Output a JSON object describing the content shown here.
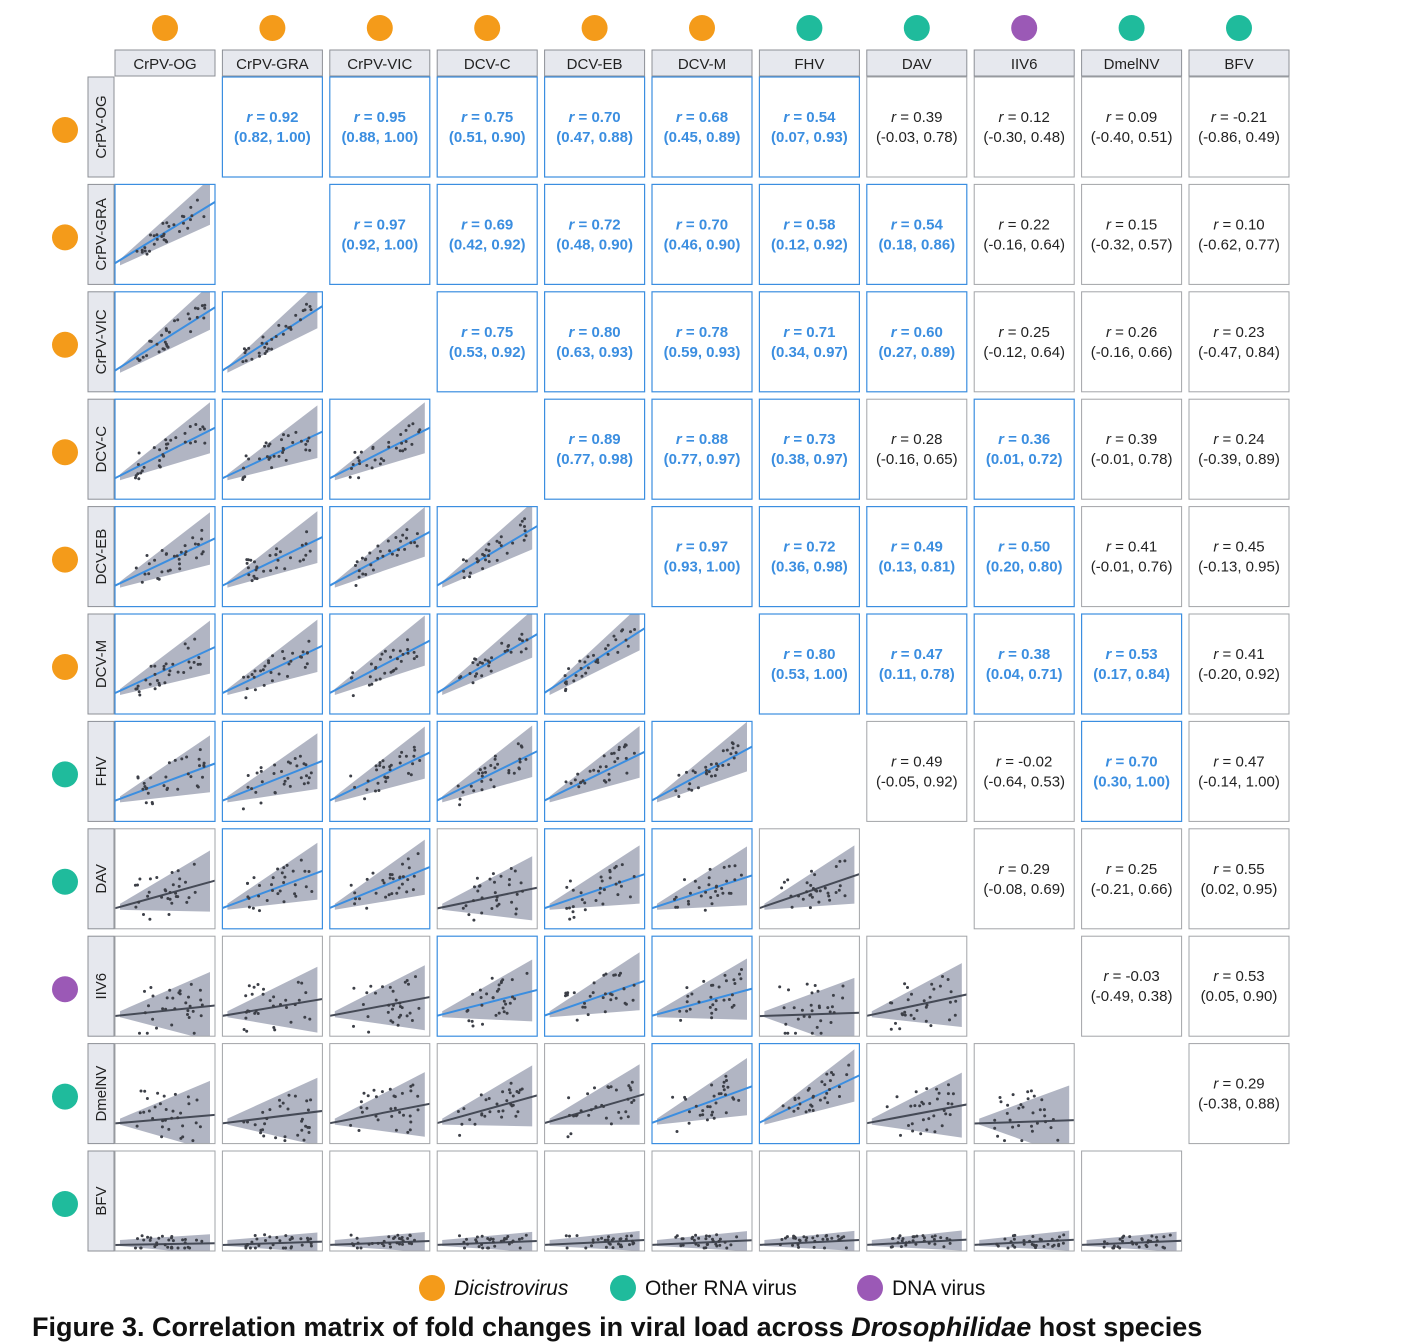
{
  "chart_data": {
    "type": "correlation-matrix",
    "viruses": [
      "CrPV-OG",
      "CrPV-GRA",
      "CrPV-VIC",
      "DCV-C",
      "DCV-EB",
      "DCV-M",
      "FHV",
      "DAV",
      "IIV6",
      "DmelNV",
      "BFV"
    ],
    "virus_groups": [
      "Dicistrovirus",
      "Dicistrovirus",
      "Dicistrovirus",
      "Dicistrovirus",
      "Dicistrovirus",
      "Dicistrovirus",
      "Other RNA virus",
      "Other RNA virus",
      "DNA virus",
      "Other RNA virus",
      "Other RNA virus"
    ],
    "group_colors": {
      "Dicistrovirus": "#f49b1a",
      "Other RNA virus": "#1fbb9c",
      "DNA virus": "#9b59b6"
    },
    "highlight_color": "#3b8ee0",
    "band_color": "#a9adbd",
    "neutral_line_color": "#454a56",
    "r_label": "r",
    "correlations": [
      {
        "row": 0,
        "col": 1,
        "r": "0.92",
        "ci": "(0.82, 1.00)",
        "significant": true
      },
      {
        "row": 0,
        "col": 2,
        "r": "0.95",
        "ci": "(0.88, 1.00)",
        "significant": true
      },
      {
        "row": 0,
        "col": 3,
        "r": "0.75",
        "ci": "(0.51, 0.90)",
        "significant": true
      },
      {
        "row": 0,
        "col": 4,
        "r": "0.70",
        "ci": "(0.47, 0.88)",
        "significant": true
      },
      {
        "row": 0,
        "col": 5,
        "r": "0.68",
        "ci": "(0.45, 0.89)",
        "significant": true
      },
      {
        "row": 0,
        "col": 6,
        "r": "0.54",
        "ci": "(0.07, 0.93)",
        "significant": true
      },
      {
        "row": 0,
        "col": 7,
        "r": "0.39",
        "ci": "(-0.03, 0.78)",
        "significant": false
      },
      {
        "row": 0,
        "col": 8,
        "r": "0.12",
        "ci": "(-0.30, 0.48)",
        "significant": false
      },
      {
        "row": 0,
        "col": 9,
        "r": "0.09",
        "ci": "(-0.40, 0.51)",
        "significant": false
      },
      {
        "row": 0,
        "col": 10,
        "r": "-0.21",
        "ci": "(-0.86, 0.49)",
        "significant": false
      },
      {
        "row": 1,
        "col": 2,
        "r": "0.97",
        "ci": "(0.92, 1.00)",
        "significant": true
      },
      {
        "row": 1,
        "col": 3,
        "r": "0.69",
        "ci": "(0.42, 0.92)",
        "significant": true
      },
      {
        "row": 1,
        "col": 4,
        "r": "0.72",
        "ci": "(0.48, 0.90)",
        "significant": true
      },
      {
        "row": 1,
        "col": 5,
        "r": "0.70",
        "ci": "(0.46, 0.90)",
        "significant": true
      },
      {
        "row": 1,
        "col": 6,
        "r": "0.58",
        "ci": "(0.12, 0.92)",
        "significant": true
      },
      {
        "row": 1,
        "col": 7,
        "r": "0.54",
        "ci": "(0.18, 0.86)",
        "significant": true
      },
      {
        "row": 1,
        "col": 8,
        "r": "0.22",
        "ci": "(-0.16, 0.64)",
        "significant": false
      },
      {
        "row": 1,
        "col": 9,
        "r": "0.15",
        "ci": "(-0.32, 0.57)",
        "significant": false
      },
      {
        "row": 1,
        "col": 10,
        "r": "0.10",
        "ci": "(-0.62, 0.77)",
        "significant": false
      },
      {
        "row": 2,
        "col": 3,
        "r": "0.75",
        "ci": "(0.53, 0.92)",
        "significant": true
      },
      {
        "row": 2,
        "col": 4,
        "r": "0.80",
        "ci": "(0.63, 0.93)",
        "significant": true
      },
      {
        "row": 2,
        "col": 5,
        "r": "0.78",
        "ci": "(0.59, 0.93)",
        "significant": true
      },
      {
        "row": 2,
        "col": 6,
        "r": "0.71",
        "ci": "(0.34, 0.97)",
        "significant": true
      },
      {
        "row": 2,
        "col": 7,
        "r": "0.60",
        "ci": "(0.27, 0.89)",
        "significant": true
      },
      {
        "row": 2,
        "col": 8,
        "r": "0.25",
        "ci": "(-0.12, 0.64)",
        "significant": false
      },
      {
        "row": 2,
        "col": 9,
        "r": "0.26",
        "ci": "(-0.16, 0.66)",
        "significant": false
      },
      {
        "row": 2,
        "col": 10,
        "r": "0.23",
        "ci": "(-0.47, 0.84)",
        "significant": false
      },
      {
        "row": 3,
        "col": 4,
        "r": "0.89",
        "ci": "(0.77, 0.98)",
        "significant": true
      },
      {
        "row": 3,
        "col": 5,
        "r": "0.88",
        "ci": "(0.77, 0.97)",
        "significant": true
      },
      {
        "row": 3,
        "col": 6,
        "r": "0.73",
        "ci": "(0.38, 0.97)",
        "significant": true
      },
      {
        "row": 3,
        "col": 7,
        "r": "0.28",
        "ci": "(-0.16, 0.65)",
        "significant": false
      },
      {
        "row": 3,
        "col": 8,
        "r": "0.36",
        "ci": "(0.01, 0.72)",
        "significant": true
      },
      {
        "row": 3,
        "col": 9,
        "r": "0.39",
        "ci": "(-0.01, 0.78)",
        "significant": false
      },
      {
        "row": 3,
        "col": 10,
        "r": "0.24",
        "ci": "(-0.39, 0.89)",
        "significant": false
      },
      {
        "row": 4,
        "col": 5,
        "r": "0.97",
        "ci": "(0.93, 1.00)",
        "significant": true
      },
      {
        "row": 4,
        "col": 6,
        "r": "0.72",
        "ci": "(0.36, 0.98)",
        "significant": true
      },
      {
        "row": 4,
        "col": 7,
        "r": "0.49",
        "ci": "(0.13, 0.81)",
        "significant": true
      },
      {
        "row": 4,
        "col": 8,
        "r": "0.50",
        "ci": "(0.20, 0.80)",
        "significant": true
      },
      {
        "row": 4,
        "col": 9,
        "r": "0.41",
        "ci": "(-0.01, 0.76)",
        "significant": false
      },
      {
        "row": 4,
        "col": 10,
        "r": "0.45",
        "ci": "(-0.13, 0.95)",
        "significant": false
      },
      {
        "row": 5,
        "col": 6,
        "r": "0.80",
        "ci": "(0.53, 1.00)",
        "significant": true
      },
      {
        "row": 5,
        "col": 7,
        "r": "0.47",
        "ci": "(0.11, 0.78)",
        "significant": true
      },
      {
        "row": 5,
        "col": 8,
        "r": "0.38",
        "ci": "(0.04, 0.71)",
        "significant": true
      },
      {
        "row": 5,
        "col": 9,
        "r": "0.53",
        "ci": "(0.17, 0.84)",
        "significant": true
      },
      {
        "row": 5,
        "col": 10,
        "r": "0.41",
        "ci": "(-0.20, 0.92)",
        "significant": false
      },
      {
        "row": 6,
        "col": 7,
        "r": "0.49",
        "ci": "(-0.05, 0.92)",
        "significant": false
      },
      {
        "row": 6,
        "col": 8,
        "r": "-0.02",
        "ci": "(-0.64, 0.53)",
        "significant": false
      },
      {
        "row": 6,
        "col": 9,
        "r": "0.70",
        "ci": "(0.30, 1.00)",
        "significant": true
      },
      {
        "row": 6,
        "col": 10,
        "r": "0.47",
        "ci": "(-0.14, 1.00)",
        "significant": false
      },
      {
        "row": 7,
        "col": 8,
        "r": "0.29",
        "ci": "(-0.08, 0.69)",
        "significant": false
      },
      {
        "row": 7,
        "col": 9,
        "r": "0.25",
        "ci": "(-0.21, 0.66)",
        "significant": false
      },
      {
        "row": 7,
        "col": 10,
        "r": "0.55",
        "ci": "(0.02, 0.95)",
        "significant": false
      },
      {
        "row": 8,
        "col": 9,
        "r": "-0.03",
        "ci": "(-0.49, 0.38)",
        "significant": false
      },
      {
        "row": 8,
        "col": 10,
        "r": "0.53",
        "ci": "(0.05, 0.90)",
        "significant": false
      },
      {
        "row": 9,
        "col": 10,
        "r": "0.29",
        "ci": "(-0.38, 0.88)",
        "significant": false
      }
    ]
  },
  "legend": [
    {
      "label": "Dicistrovirus",
      "color": "#f49b1a",
      "italic": true
    },
    {
      "label": "Other RNA virus",
      "color": "#1fbb9c",
      "italic": false
    },
    {
      "label": "DNA virus",
      "color": "#9b59b6",
      "italic": false
    }
  ],
  "caption": {
    "prefix": "Figure 3. Correlation matrix of fold changes in viral load across ",
    "italic": "Drosophilidae",
    "suffix": " host species"
  }
}
